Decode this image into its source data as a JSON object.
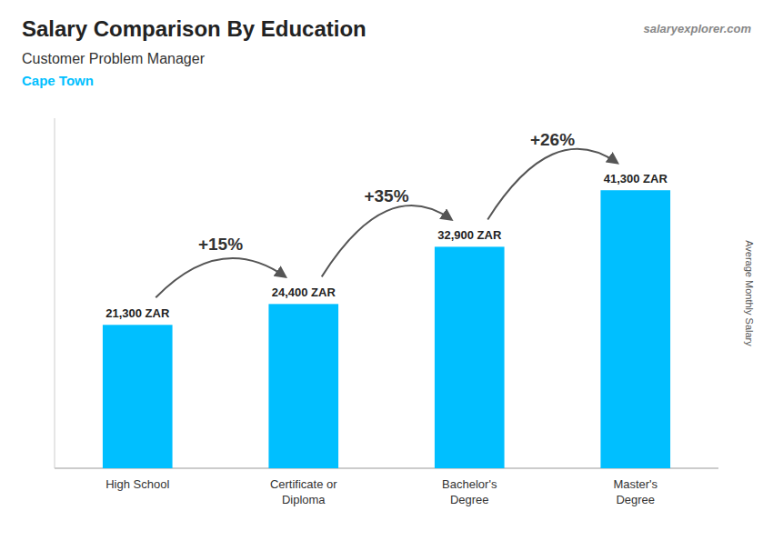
{
  "chart_data": {
    "type": "bar",
    "title": "Salary Comparison By Education",
    "subtitle": "Customer Problem Manager",
    "city": "Cape Town",
    "watermark": "salaryexplorer.com",
    "ylabel": "Average Monthly Salary",
    "categories": [
      "High School",
      "Certificate or\nDiploma",
      "Bachelor's\nDegree",
      "Master's\nDegree"
    ],
    "values": [
      21300,
      24400,
      32900,
      41300
    ],
    "value_labels": [
      "21,300 ZAR",
      "24,400 ZAR",
      "32,900 ZAR",
      "41,300 ZAR"
    ],
    "data_labels": true,
    "annotations": [
      "+15%",
      "+35%",
      "+26%"
    ],
    "color": "#00BFFF",
    "ylim": [
      0,
      52000
    ],
    "tick_labels": "x",
    "grid": false
  }
}
